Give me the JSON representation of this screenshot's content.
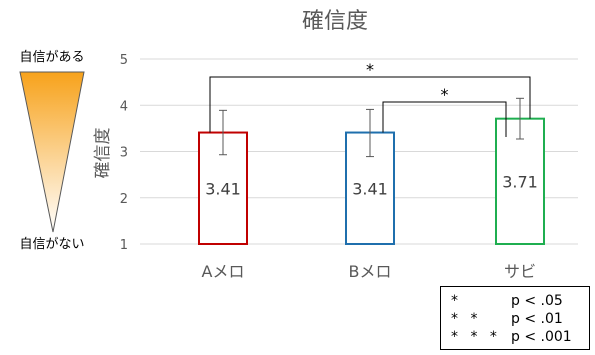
{
  "chart_data": {
    "type": "bar",
    "title": "確信度",
    "ylabel": "確信度",
    "xlabel": "",
    "categories": [
      "Aメロ",
      "Bメロ",
      "サビ"
    ],
    "values": [
      3.41,
      3.41,
      3.71
    ],
    "value_labels": [
      "3.41",
      "3.41",
      "3.71"
    ],
    "error_upper": [
      3.89,
      3.91,
      4.15
    ],
    "error_lower": [
      2.93,
      2.89,
      3.27
    ],
    "bar_colors": [
      "#c00000",
      "#1f6fad",
      "#1fae50"
    ],
    "ylim": [
      1,
      5
    ],
    "yticks": [
      1,
      2,
      3,
      4,
      5
    ],
    "grid": true,
    "significance": [
      {
        "from": 0,
        "to": 2,
        "label": "*"
      },
      {
        "from": 1,
        "to": 2,
        "label": "*"
      }
    ],
    "scale_top_label": "自信がある",
    "scale_bottom_label": "自信がない",
    "legend": [
      {
        "stars": "*",
        "p": "p < .05"
      },
      {
        "stars": "* *",
        "p": "p < .01"
      },
      {
        "stars": "* * *",
        "p": "p < .001"
      }
    ]
  }
}
